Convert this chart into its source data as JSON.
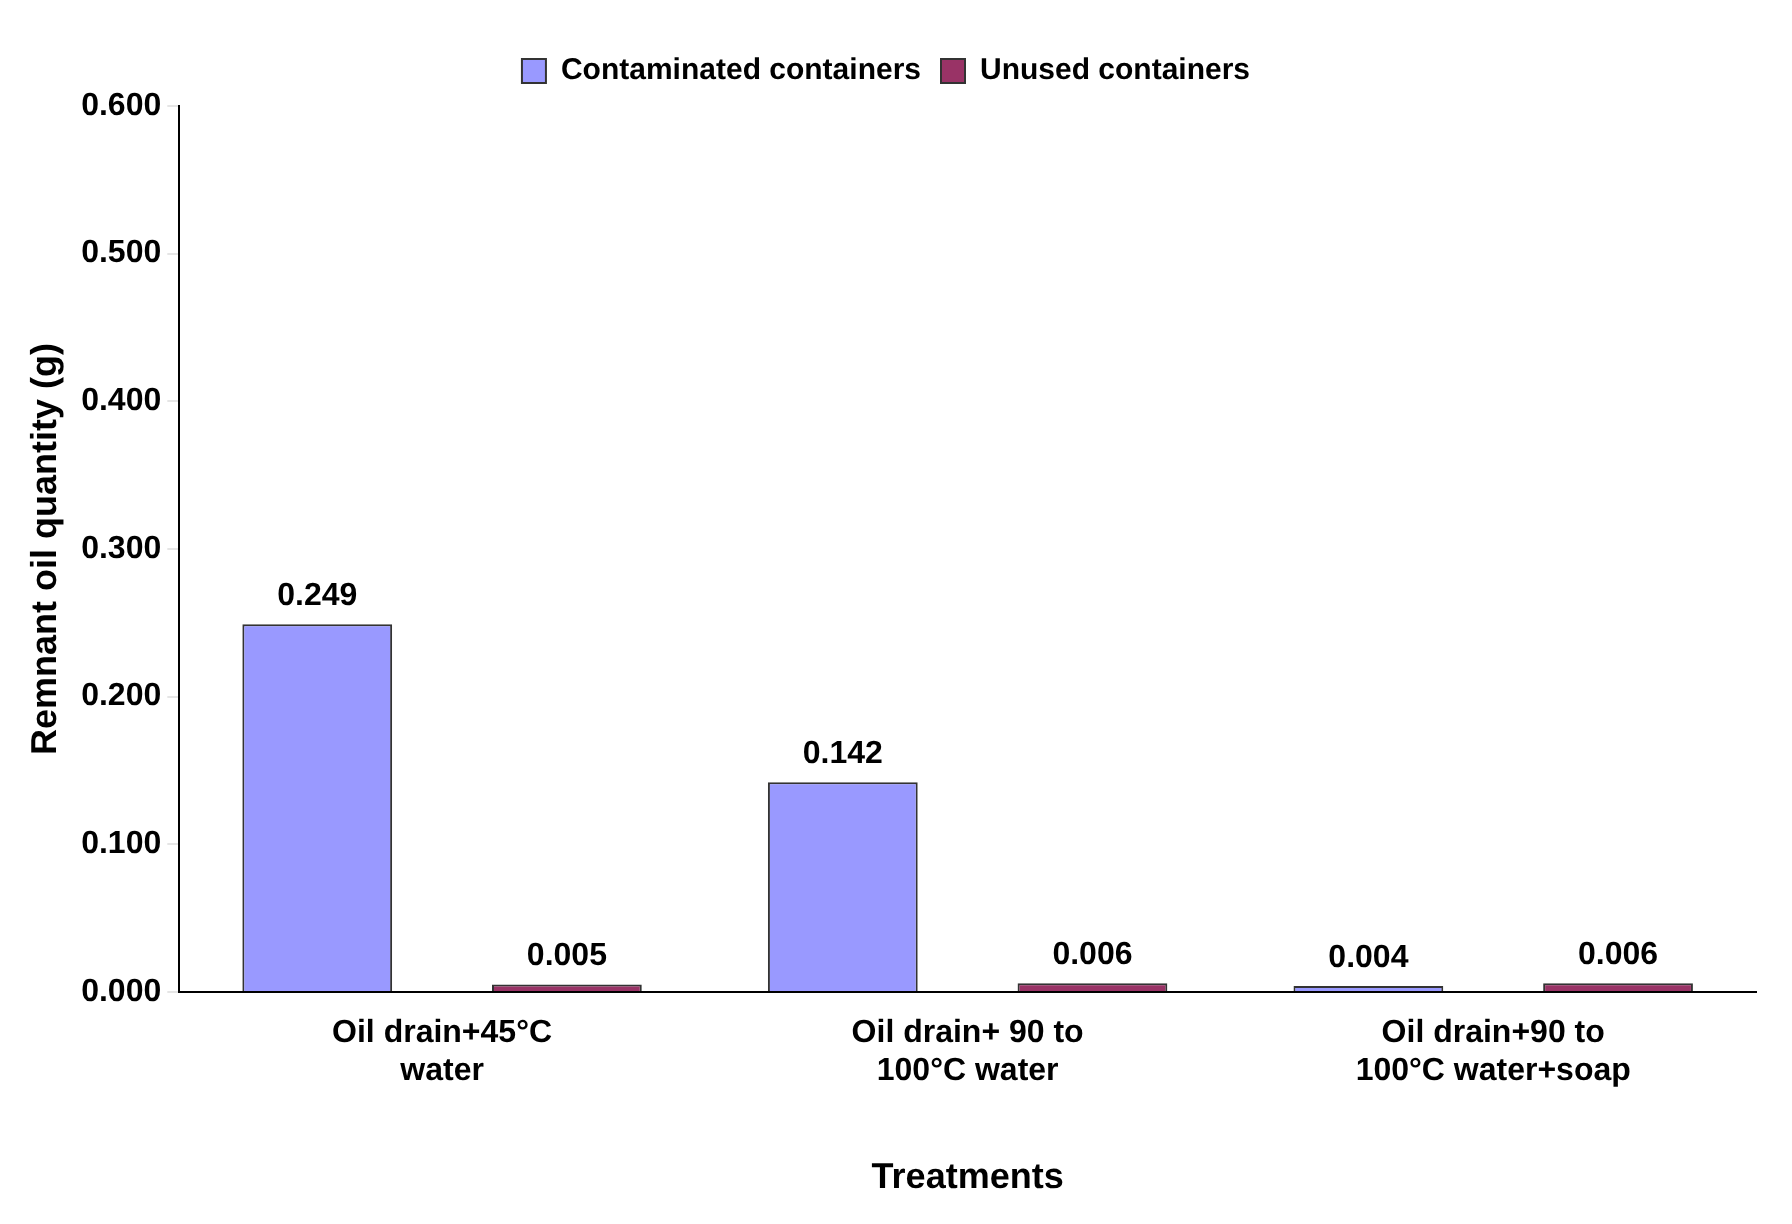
{
  "chart_data": {
    "type": "bar",
    "xlabel": "Treatments",
    "ylabel": "Remnant oil quantity (g)",
    "categories": [
      "Oil drain+45°C water",
      "Oil drain+ 90 to 100°C water",
      "Oil drain+90 to 100°C water+soap"
    ],
    "series": [
      {
        "name": "Contaminated containers",
        "color": "#9999ff",
        "values": [
          0.249,
          0.142,
          0.004
        ]
      },
      {
        "name": "Unused containers",
        "color": "#993366",
        "values": [
          0.005,
          0.006,
          0.006
        ]
      }
    ],
    "ylim": [
      0,
      0.6
    ],
    "yticks": [
      {
        "value": 0,
        "label": "0.000"
      },
      {
        "value": 0.1,
        "label": "0.100"
      },
      {
        "value": 0.2,
        "label": "0.200"
      },
      {
        "value": 0.3,
        "label": "0.300"
      },
      {
        "value": 0.4,
        "label": "0.400"
      },
      {
        "value": 0.5,
        "label": "0.500"
      },
      {
        "value": 0.6,
        "label": "0.600"
      }
    ],
    "data_labels": true,
    "grid": false,
    "legend": "top"
  }
}
